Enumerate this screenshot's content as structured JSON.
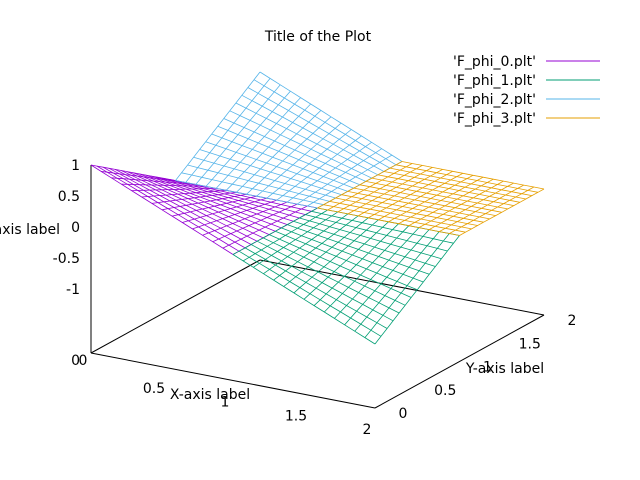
{
  "chart_data": {
    "type": "surface3d",
    "title": "Title of the Plot",
    "xlabel": "X-axis label",
    "ylabel": "Y-axis label",
    "zlabel": "Z-axis label",
    "xlim": [
      0,
      2
    ],
    "ylim": [
      0,
      2
    ],
    "zlim": [
      -1,
      1
    ],
    "x_ticks": [
      "0",
      "0.5",
      "1",
      "1.5",
      "2"
    ],
    "y_ticks": [
      "0",
      "0.5",
      "1",
      "1.5",
      "2"
    ],
    "z_ticks": [
      "1",
      "0.5",
      "0",
      "-0.5",
      "-1"
    ],
    "legend_position": "top-right",
    "series": [
      {
        "name": "'F_phi_0.plt'",
        "color": "#9400d3",
        "x_range": [
          0,
          1
        ],
        "y_range": [
          0,
          1
        ],
        "value_at_origin_corner": 1,
        "value_at_center": 0
      },
      {
        "name": "'F_phi_1.plt'",
        "color": "#009e73",
        "x_range": [
          1,
          2
        ],
        "y_range": [
          0,
          1
        ],
        "value_at_outer_corner": -1,
        "value_at_center": 0
      },
      {
        "name": "'F_phi_2.plt'",
        "color": "#56b4e9",
        "x_range": [
          0,
          1
        ],
        "y_range": [
          1,
          2
        ],
        "value_at_outer_corner": 1,
        "value_at_center": 0
      },
      {
        "name": "'F_phi_3.plt'",
        "color": "#e69f00",
        "x_range": [
          1,
          2
        ],
        "y_range": [
          1,
          2
        ],
        "value_at_outer_corner": 0,
        "value_at_center": 0
      }
    ]
  }
}
